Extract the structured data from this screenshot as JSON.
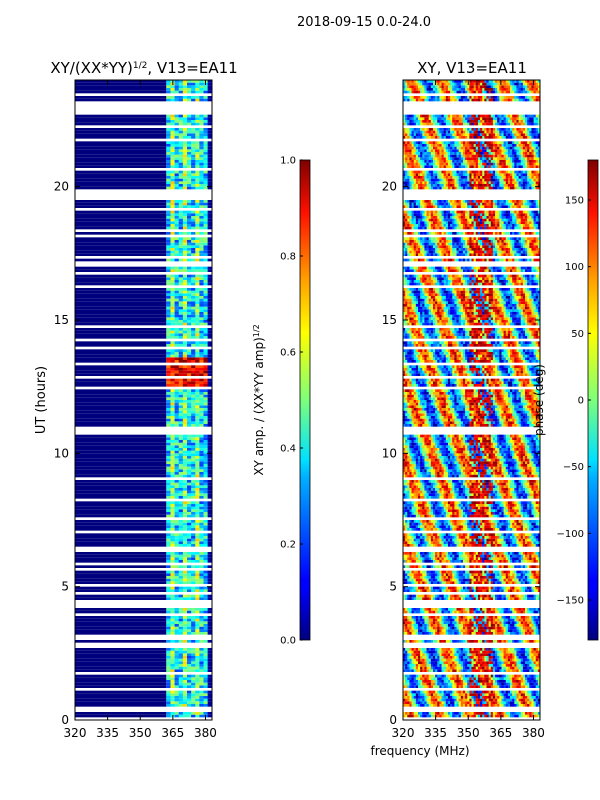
{
  "suptitle": "2018-09-15 0.0-24.0",
  "shared_xlabel": "frequency (MHz)",
  "chart_data": [
    {
      "type": "heatmap",
      "title_main": "XY/(XX*YY)",
      "title_exp": "1/2",
      "title_suffix": ", V13=EA11",
      "xlabel": "",
      "ylabel": "UT (hours)",
      "xlim": [
        320,
        383
      ],
      "ylim": [
        0,
        24
      ],
      "xticks": [
        320,
        335,
        350,
        365,
        380
      ],
      "yticks": [
        0,
        5,
        10,
        15,
        20
      ],
      "active_band_mhz": [
        362,
        381
      ],
      "colorbar": {
        "label_main": "XY amp. / (XX*YY amp)",
        "label_exp": "1/2",
        "range": [
          0.0,
          1.0
        ],
        "ticks": [
          "0.0",
          "0.2",
          "0.4",
          "0.6",
          "0.8",
          "1.0"
        ],
        "colormap": "jet"
      }
    },
    {
      "type": "heatmap",
      "title_main": "XY, V13=EA11",
      "xlabel": "frequency (MHz)",
      "ylabel": "",
      "xlim": [
        320,
        383
      ],
      "ylim": [
        0,
        24
      ],
      "xticks": [
        320,
        335,
        350,
        365,
        380
      ],
      "yticks": [
        0,
        5,
        10,
        15,
        20
      ],
      "colorbar": {
        "label_main": "phase (deg)",
        "range": [
          -180,
          180
        ],
        "ticks": [
          "150",
          "100",
          "50",
          "0",
          "−50",
          "−100",
          "−150"
        ],
        "colormap": "jet"
      }
    }
  ]
}
